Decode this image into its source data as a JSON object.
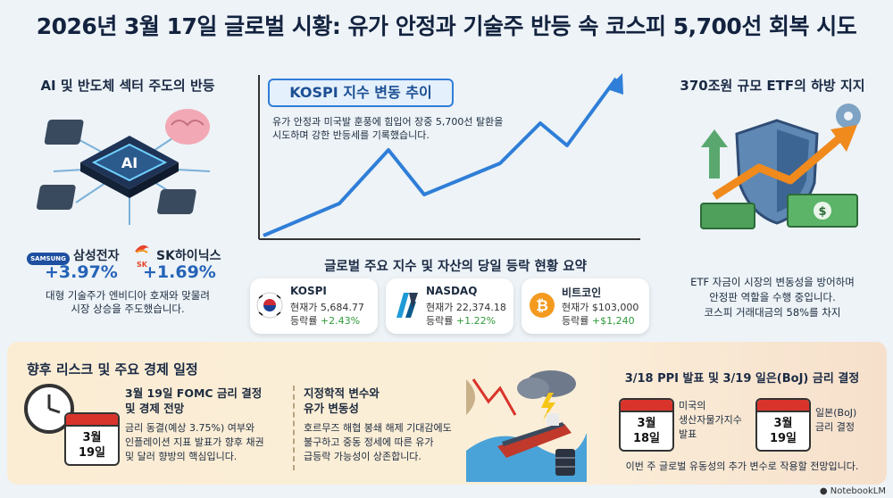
{
  "title": "2026년 3월 17일 글로벌 시황: 유가 안정과 기술주 반등 속 코스피 5,700선 회복 시도",
  "left": {
    "heading": "AI 및 반도체 섹터 주도의 반등",
    "chip_label": "AI",
    "samsung": {
      "logo": "SAMSUNG",
      "name": "삼성전자",
      "change": "+3.97%"
    },
    "sk": {
      "logo": "SK",
      "name": "SK하이닉스",
      "change": "+1.69%"
    },
    "note_line1": "대형 기술주가 엔비디아 호재와 맞물려",
    "note_line2": "시장 상승을 주도했습니다."
  },
  "center": {
    "chart_heading": "KOSPI 지수 변동 추이",
    "chart_desc_line1": "유가 안정과 미국발 훈풍에 힘입어 장중 5,700선 탈환을",
    "chart_desc_line2": "시도하며 강한 반등세를 기록했습니다.",
    "summary_heading": "글로벌 주요 지수 및 자산의 당일 등락 현황 요약",
    "assets": [
      {
        "name": "KOSPI",
        "price_label": "현재가",
        "price": "5,684.77",
        "change_label": "등락률",
        "change": "+2.43%",
        "icon": "korea-flag-icon"
      },
      {
        "name": "NASDAQ",
        "price_label": "현재가",
        "price": "22,374.18",
        "change_label": "등락률",
        "change": "+1.22%",
        "icon": "nasdaq-logo-icon"
      },
      {
        "name": "비트코인",
        "price_label": "현재가",
        "price": "$103,000",
        "change_label": "등락률",
        "change": "+$1,240",
        "icon": "bitcoin-icon"
      }
    ]
  },
  "right": {
    "heading": "370조원 규모 ETF의 하방 지지",
    "note_line1": "ETF 자금이 시장의 변동성을 방어하며",
    "note_line2": "안정판 역할을 수행 중입니다.",
    "note_line3": "코스피 거래대금의 58%를 차지"
  },
  "bottom": {
    "heading": "향후 리스크 및 주요 경제 일정",
    "fomc": {
      "calendar": [
        "3월",
        "19일"
      ],
      "title_line1": "3월 19일 FOMC 금리 결정",
      "title_line2": "및 경제 전망",
      "desc_line1": "금리 동결(예상 3.75%) 여부와",
      "desc_line2": "인플레이션 지표 발표가 향후 채권",
      "desc_line3": "및 달러 향방의 핵심입니다."
    },
    "geo": {
      "title_line1": "지정학적 변수와",
      "title_line2": "유가 변동성",
      "desc_line1": "호르무즈 해협 봉쇄 해제 기대감에도",
      "desc_line2": "불구하고 중동 정세에 따른 유가",
      "desc_line3": "급등락 가능성이 상존합니다."
    },
    "schedule": {
      "heading": "3/18 PPI 발표 및 3/19 일은(BoJ) 금리 결정",
      "ppi_cal": [
        "3월",
        "18일"
      ],
      "ppi_line1": "미국의",
      "ppi_line2": "생산자물가지수",
      "ppi_line3": "발표",
      "boj_cal": [
        "3월",
        "19일"
      ],
      "boj_line1": "일본(BoJ)",
      "boj_line2": "금리 결정",
      "note": "이번 주 글로벌 유동성의 추가 변수로 작용할 전망입니다."
    }
  },
  "footer": "NotebookLM",
  "colors": {
    "up_green": "#2f9a3b",
    "accent_blue": "#2563b8",
    "calendar_red": "#d9342b"
  }
}
